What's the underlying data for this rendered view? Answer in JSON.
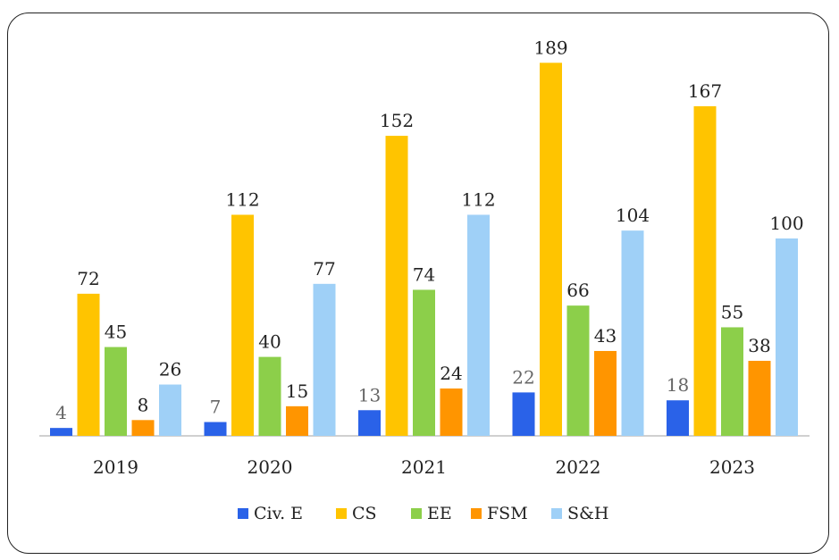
{
  "chart_data": {
    "type": "bar",
    "categories": [
      "2019",
      "2020",
      "2021",
      "2022",
      "2023"
    ],
    "series": [
      {
        "name": "Civ. E",
        "color": "#2a62e8",
        "values": [
          4,
          7,
          13,
          22,
          18
        ]
      },
      {
        "name": "CS",
        "color": "#ffc400",
        "values": [
          72,
          112,
          152,
          189,
          167
        ]
      },
      {
        "name": "EE",
        "color": "#8ccf4a",
        "values": [
          45,
          40,
          74,
          66,
          55
        ]
      },
      {
        "name": "FSM",
        "color": "#ff9500",
        "values": [
          8,
          15,
          24,
          43,
          38
        ]
      },
      {
        "name": "S&H",
        "color": "#9fd0f7",
        "values": [
          26,
          77,
          112,
          104,
          100
        ]
      }
    ],
    "ylim": [
      0,
      200
    ],
    "grid": false,
    "legend": "bottom",
    "title": "",
    "xlabel": "",
    "ylabel": ""
  }
}
